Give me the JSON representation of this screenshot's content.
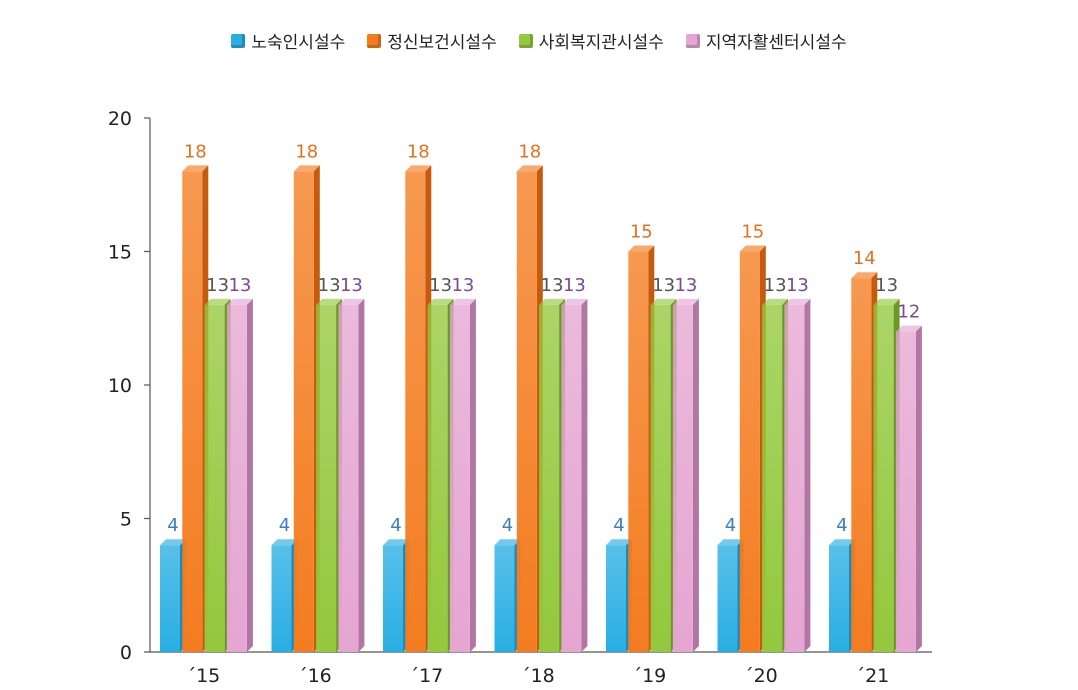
{
  "chart_data": {
    "type": "bar",
    "categories": [
      "´15",
      "´16",
      "´17",
      "´18",
      "´19",
      "´20",
      "´21"
    ],
    "series": [
      {
        "name": "노숙인시설수",
        "values": [
          4,
          4,
          4,
          4,
          4,
          4,
          4
        ],
        "color": "#29aee3",
        "side_color": "#1a8bbd",
        "label_color": "#3a7fc4"
      },
      {
        "name": "정신보건시설수",
        "values": [
          18,
          18,
          18,
          18,
          15,
          15,
          14
        ],
        "color": "#f47c20",
        "side_color": "#c85a0e",
        "label_color": "#e8701c"
      },
      {
        "name": "사회복지관시설수",
        "values": [
          13,
          13,
          13,
          13,
          13,
          13,
          13
        ],
        "color": "#94c83d",
        "side_color": "#6a9a24",
        "label_color": "#555555"
      },
      {
        "name": "지역자활센터시설수",
        "values": [
          13,
          13,
          13,
          13,
          13,
          13,
          12
        ],
        "color": "#e5a6d2",
        "side_color": "#b176a3",
        "label_color": "#7a4a9a"
      }
    ],
    "ylim": [
      0,
      20
    ],
    "yticks": [
      0,
      5,
      10,
      15,
      20
    ],
    "title": "",
    "xlabel": "",
    "ylabel": "",
    "legend_position": "top",
    "grid": false
  }
}
